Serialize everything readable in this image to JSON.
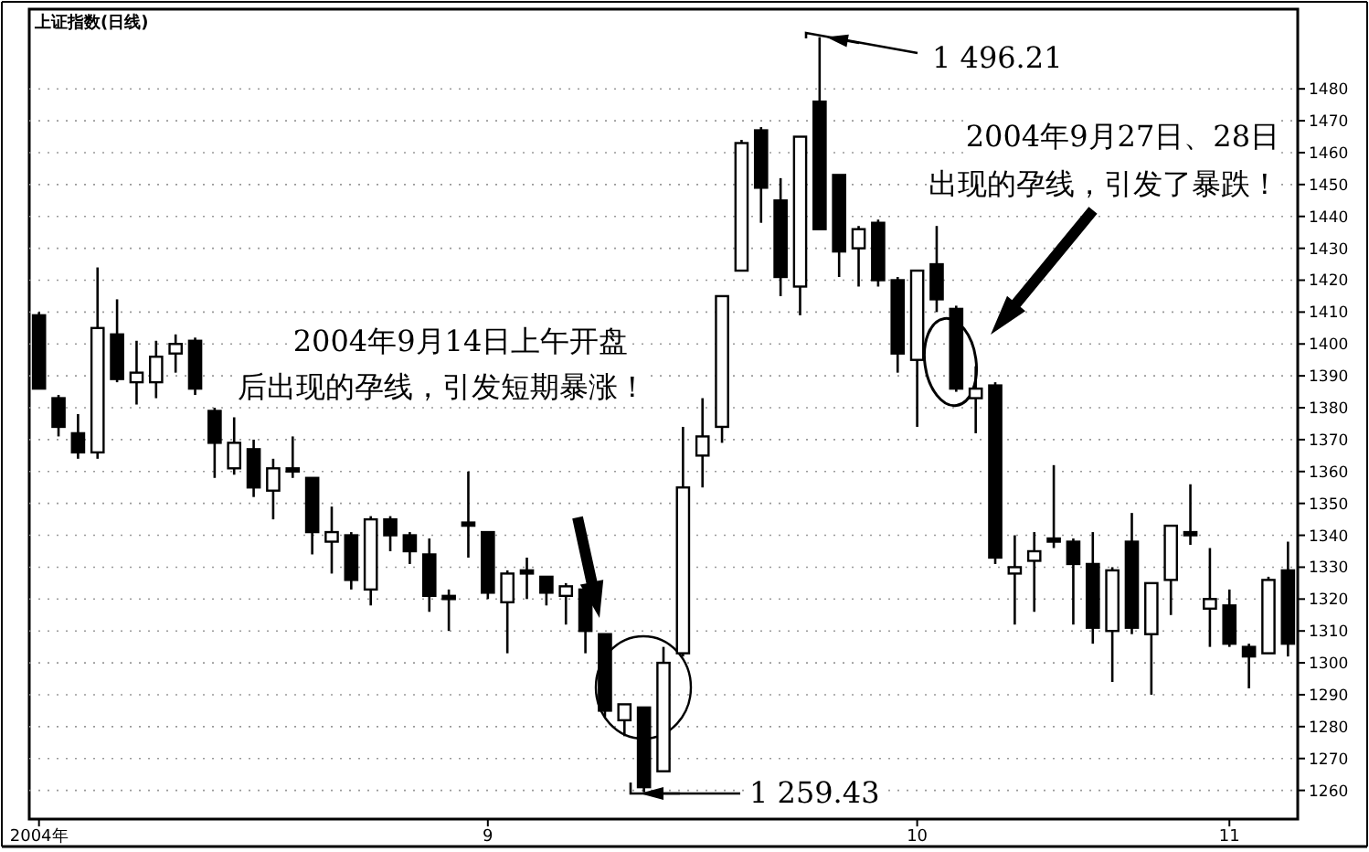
{
  "chart_data": {
    "type": "candlestick",
    "title": "上证指数(日线)",
    "categories": [
      "2004年",
      null,
      null,
      null,
      null,
      null,
      null,
      null,
      null,
      null,
      null,
      null,
      null,
      null,
      null,
      null,
      null,
      null,
      null,
      null,
      null,
      null,
      null,
      "9",
      null,
      null,
      null,
      null,
      null,
      null,
      null,
      null,
      null,
      null,
      null,
      null,
      null,
      null,
      null,
      null,
      null,
      null,
      null,
      null,
      null,
      "10",
      null,
      null,
      null,
      null,
      null,
      null,
      null,
      null,
      null,
      null,
      null,
      null,
      null,
      null,
      null,
      "11",
      null,
      null,
      null
    ],
    "ohlc": [
      [
        1409,
        1410,
        1386,
        1386
      ],
      [
        1383,
        1384,
        1371,
        1374
      ],
      [
        1372,
        1378,
        1364,
        1366
      ],
      [
        1366,
        1424,
        1364,
        1405
      ],
      [
        1403,
        1414,
        1388,
        1389
      ],
      [
        1388,
        1401,
        1381,
        1391
      ],
      [
        1388,
        1401,
        1383,
        1396
      ],
      [
        1397,
        1403,
        1391,
        1400
      ],
      [
        1401,
        1402,
        1384,
        1386
      ],
      [
        1379,
        1380,
        1358,
        1369
      ],
      [
        1361,
        1377,
        1359,
        1369
      ],
      [
        1367,
        1370,
        1352,
        1355
      ],
      [
        1354,
        1364,
        1345,
        1361
      ],
      [
        1361,
        1371,
        1358,
        1360
      ],
      [
        1358,
        1358,
        1334,
        1341
      ],
      [
        1338,
        1349,
        1328,
        1341
      ],
      [
        1340,
        1341,
        1323,
        1326
      ],
      [
        1323,
        1346,
        1318,
        1345
      ],
      [
        1345,
        1346,
        1335,
        1340
      ],
      [
        1340,
        1341,
        1331,
        1335
      ],
      [
        1334,
        1339,
        1316,
        1321
      ],
      [
        1321,
        1323,
        1310,
        1320
      ],
      [
        1344,
        1360,
        1333,
        1343
      ],
      [
        1341,
        1341,
        1320,
        1322
      ],
      [
        1319,
        1329,
        1303,
        1328
      ],
      [
        1329,
        1333,
        1320,
        1328
      ],
      [
        1327,
        1327,
        1318,
        1322
      ],
      [
        1321,
        1325,
        1312,
        1324
      ],
      [
        1323,
        1324,
        1303,
        1310
      ],
      [
        1309,
        1309,
        1283,
        1285
      ],
      [
        1282,
        1287,
        1277,
        1287
      ],
      [
        1286,
        1286,
        1259.43,
        1261
      ],
      [
        1266,
        1305,
        1266,
        1300
      ],
      [
        1303,
        1374,
        1302,
        1355
      ],
      [
        1365,
        1383,
        1355,
        1371
      ],
      [
        1374,
        1415,
        1369,
        1415
      ],
      [
        1423,
        1464,
        1423,
        1463
      ],
      [
        1467,
        1468,
        1438,
        1449
      ],
      [
        1445,
        1452,
        1415,
        1421
      ],
      [
        1418,
        1465,
        1409,
        1465
      ],
      [
        1476,
        1496.21,
        1436,
        1436
      ],
      [
        1453,
        1453,
        1421,
        1429
      ],
      [
        1430,
        1437,
        1418,
        1436
      ],
      [
        1438,
        1439,
        1418,
        1420
      ],
      [
        1420,
        1421,
        1391,
        1397
      ],
      [
        1395,
        1423,
        1374,
        1423
      ],
      [
        1425,
        1437,
        1410,
        1414
      ],
      [
        1411,
        1412,
        1385,
        1386
      ],
      [
        1383,
        1393,
        1372,
        1386
      ],
      [
        1387,
        1388,
        1331,
        1333
      ],
      [
        1328,
        1340,
        1312,
        1330
      ],
      [
        1332,
        1341,
        1316,
        1335
      ],
      [
        1339,
        1362,
        1336,
        1338
      ],
      [
        1338,
        1339,
        1312,
        1331
      ],
      [
        1331,
        1341,
        1306,
        1311
      ],
      [
        1310,
        1330,
        1294,
        1329
      ],
      [
        1338,
        1347,
        1309,
        1311
      ],
      [
        1309,
        1325,
        1290,
        1325
      ],
      [
        1326,
        1343,
        1315,
        1343
      ],
      [
        1341,
        1356,
        1337,
        1340
      ],
      [
        1317,
        1336,
        1305,
        1320
      ],
      [
        1318,
        1323,
        1305,
        1306
      ],
      [
        1305,
        1306,
        1292,
        1302
      ],
      [
        1303,
        1327,
        1303,
        1326
      ],
      [
        1329,
        1338,
        1302,
        1306
      ]
    ],
    "ylim": [
      1251,
      1505
    ],
    "yticks": [
      1260,
      1270,
      1280,
      1290,
      1300,
      1310,
      1320,
      1330,
      1340,
      1350,
      1360,
      1370,
      1380,
      1390,
      1400,
      1410,
      1420,
      1430,
      1440,
      1450,
      1460,
      1470,
      1480
    ],
    "grid": "y",
    "annotations": [
      "1 496.21",
      "2004年9月27日、28日",
      "出现的孕线，引发了暴跌！",
      "2004年9月14日上午开盘",
      "后出现的孕线，引发短期暴涨！",
      "1 259.43"
    ]
  }
}
